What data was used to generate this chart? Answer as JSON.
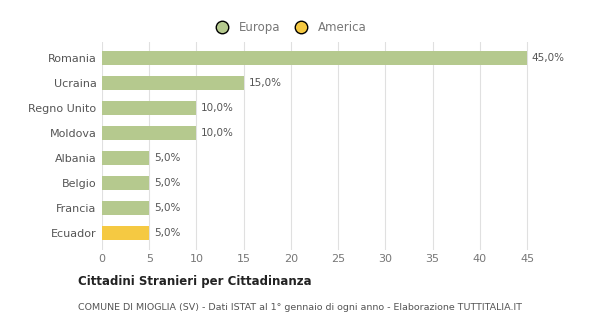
{
  "categories": [
    "Romania",
    "Ucraina",
    "Regno Unito",
    "Moldova",
    "Albania",
    "Belgio",
    "Francia",
    "Ecuador"
  ],
  "values": [
    45.0,
    15.0,
    10.0,
    10.0,
    5.0,
    5.0,
    5.0,
    5.0
  ],
  "labels": [
    "45,0%",
    "15,0%",
    "10,0%",
    "10,0%",
    "5,0%",
    "5,0%",
    "5,0%",
    "5,0%"
  ],
  "colors": [
    "#b5c98e",
    "#b5c98e",
    "#b5c98e",
    "#b5c98e",
    "#b5c98e",
    "#b5c98e",
    "#b5c98e",
    "#f5c942"
  ],
  "legend": [
    {
      "label": "Europa",
      "color": "#b5c98e"
    },
    {
      "label": "America",
      "color": "#f5c942"
    }
  ],
  "xlim": [
    0,
    47
  ],
  "xticks": [
    0,
    5,
    10,
    15,
    20,
    25,
    30,
    35,
    40,
    45
  ],
  "title_bold": "Cittadini Stranieri per Cittadinanza",
  "subtitle": "COMUNE DI MIOGLIA (SV) - Dati ISTAT al 1° gennaio di ogni anno - Elaborazione TUTTITALIA.IT",
  "background_color": "#ffffff",
  "plot_bg_color": "#ffffff",
  "grid_color": "#e0e0e0"
}
